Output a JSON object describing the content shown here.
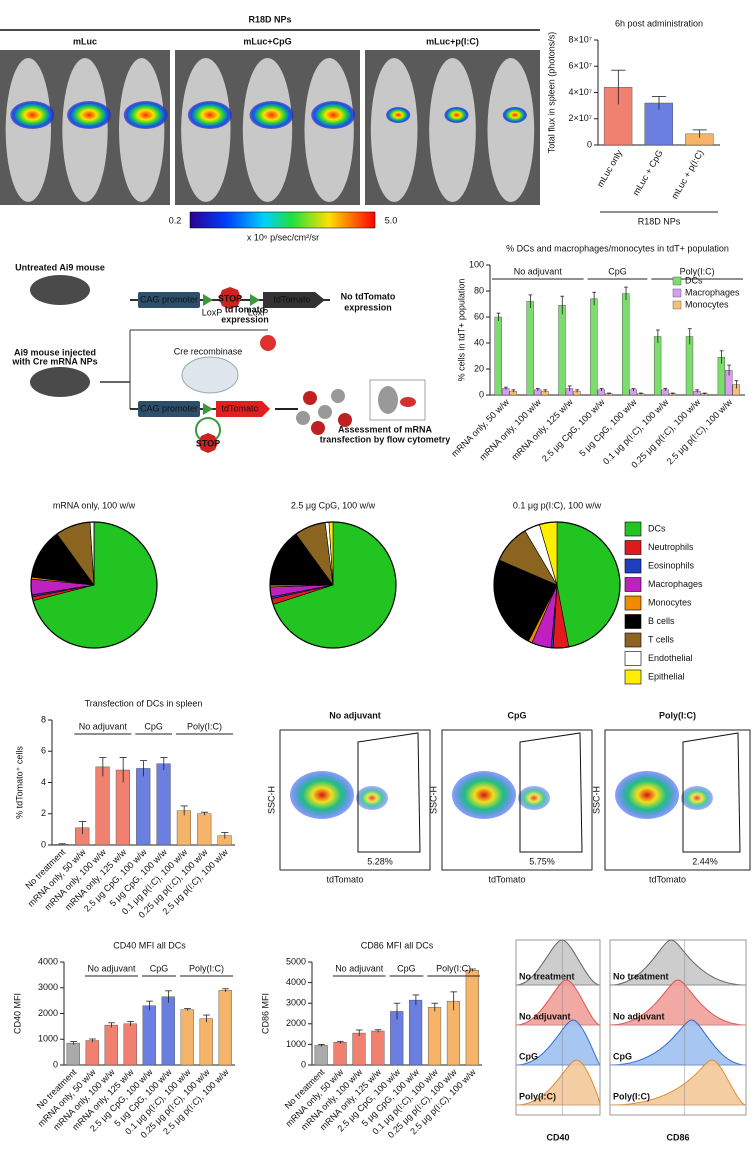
{
  "chart_data": [
    {
      "type": "bar",
      "title": "6h post administration",
      "y_label": "Total flux in spleen (photons/s)",
      "categories": [
        "mLuc only",
        "mLuc + CpG",
        "mLuc + p(I:C)"
      ],
      "values": [
        44000000,
        32000000,
        8500000
      ],
      "errors": [
        13000000,
        5000000,
        3000000
      ],
      "colors": [
        "#f08070",
        "#6a7fe0",
        "#f5b46a"
      ],
      "ylim": [
        0,
        80000000
      ],
      "yticks": [
        0,
        {
          "value": 20000000,
          "label": "2×10⁷"
        },
        {
          "value": 40000000,
          "label": "4×10⁷"
        },
        {
          "value": 60000000,
          "label": "6×10⁷"
        },
        {
          "value": 80000000,
          "label": "8×10⁷"
        }
      ],
      "group_labels": [
        "R18D NPs"
      ]
    },
    {
      "type": "bar",
      "title": "% DCs and macrophages/monocytes in tdT+ population",
      "y_label": "% cells in tdT+ population",
      "categories": [
        "mRNA only, 50 w/w",
        "mRNA only, 100 w/w",
        "mRNA only, 125 w/w",
        "2.5 μg CpG, 100 w/w",
        "5 μg CpG, 100 w/w",
        "0.1 μg p(I:C), 100 w/w",
        "0.25 μg p(I:C), 100 w/w",
        "2.5 μg p(I:C), 100 w/w"
      ],
      "series": [
        {
          "name": "DCs",
          "color": "#7ddc6e",
          "values": [
            60,
            72,
            69,
            74,
            78,
            45,
            45,
            29
          ],
          "errors": [
            3,
            5,
            7,
            5,
            5,
            5,
            6,
            5
          ]
        },
        {
          "name": "Macrophages",
          "color": "#d89cf0",
          "values": [
            5,
            4,
            5,
            4,
            4,
            4,
            3,
            19
          ],
          "errors": [
            1,
            1,
            2,
            1,
            1,
            1,
            1,
            4
          ]
        },
        {
          "name": "Monocytes",
          "color": "#f7c07a",
          "values": [
            3,
            3,
            3,
            1,
            1,
            1,
            1,
            8
          ],
          "errors": [
            1,
            1,
            1,
            0.5,
            0.5,
            0.5,
            0.5,
            3
          ]
        }
      ],
      "ylim": [
        0,
        100
      ],
      "yticks": [
        0,
        20,
        40,
        60,
        80,
        100
      ],
      "group_labels": [
        "No adjuvant",
        "CpG",
        "Poly(I:C)"
      ],
      "legend": "top-right"
    },
    {
      "type": "pie",
      "title": "mRNA only, 100 w/w",
      "categories": [
        "DCs",
        "Neutrophils",
        "Eosinophils",
        "Macrophages",
        "Monocytes",
        "B cells",
        "T cells",
        "Endothelial",
        "Epithelial"
      ],
      "values": [
        71,
        1,
        0.5,
        4,
        0.5,
        13,
        9,
        1,
        0
      ],
      "colors": [
        "#22c422",
        "#e31a1c",
        "#1f3fbf",
        "#c020c0",
        "#f08a00",
        "#000000",
        "#8b6420",
        "#ffffff",
        "#ffee00"
      ]
    },
    {
      "type": "pie",
      "title": "2.5 μg CpG, 100 w/w",
      "categories": [
        "DCs",
        "Neutrophils",
        "Eosinophils",
        "Macrophages",
        "Monocytes",
        "B cells",
        "T cells",
        "Endothelial",
        "Epithelial"
      ],
      "values": [
        70,
        1.5,
        0.5,
        2.5,
        0.5,
        15,
        8,
        1,
        1
      ],
      "colors": [
        "#22c422",
        "#e31a1c",
        "#1f3fbf",
        "#c020c0",
        "#f08a00",
        "#000000",
        "#8b6420",
        "#ffffff",
        "#ffee00"
      ]
    },
    {
      "type": "pie",
      "title": "0.1 μg p(I:C), 100 w/w",
      "categories": [
        "DCs",
        "Neutrophils",
        "Eosinophils",
        "Macrophages",
        "Monocytes",
        "B cells",
        "T cells",
        "Endothelial",
        "Epithelial"
      ],
      "values": [
        47,
        4,
        0.5,
        5,
        1,
        24,
        10,
        4,
        4.5
      ],
      "colors": [
        "#22c422",
        "#e31a1c",
        "#1f3fbf",
        "#c020c0",
        "#f08a00",
        "#000000",
        "#8b6420",
        "#ffffff",
        "#ffee00"
      ]
    },
    {
      "type": "bar",
      "title": "Transfection of DCs in spleen",
      "y_label": "% tdTomato⁺ cells",
      "categories": [
        "No treatment",
        "mRNA only, 50 w/w",
        "mRNA only, 100 w/w",
        "mRNA only, 125 w/w",
        "2.5 μg CpG, 100 w/w",
        "5 μg CpG, 100 w/w",
        "0.1 μg p(I:C), 100 w/w",
        "0.25 μg p(I:C), 100 w/w",
        "2.5 μg p(I:C), 100 w/w"
      ],
      "values": [
        0.05,
        1.1,
        5.0,
        4.8,
        4.9,
        5.2,
        2.2,
        2.0,
        0.6
      ],
      "errors": [
        0.03,
        0.4,
        0.6,
        0.8,
        0.5,
        0.4,
        0.3,
        0.1,
        0.2
      ],
      "colors": [
        "#aaaaaa",
        "#f08070",
        "#f08070",
        "#f08070",
        "#6a7fe0",
        "#6a7fe0",
        "#f5b46a",
        "#f5b46a",
        "#f5b46a"
      ],
      "ylim": [
        0,
        8
      ],
      "yticks": [
        0,
        2,
        4,
        6,
        8
      ],
      "group_labels": [
        "No adjuvant",
        "CpG",
        "Poly(I:C)"
      ]
    },
    {
      "type": "bar",
      "title": "CD40 MFI all DCs",
      "y_label": "CD40 MFI",
      "categories": [
        "No treatment",
        "mRNA only, 50 w/w",
        "mRNA only, 100 w/w",
        "mRNA only, 125 w/w",
        "2.5 μg CpG, 100 w/w",
        "5 μg CpG, 100 w/w",
        "0.1 μg p(I:C), 100 w/w",
        "0.25 μg p(I:C), 100 w/w",
        "2.5 μg p(I:C), 100 w/w"
      ],
      "values": [
        850,
        950,
        1550,
        1600,
        2300,
        2650,
        2150,
        1800,
        2900
      ],
      "errors": [
        60,
        60,
        90,
        90,
        180,
        230,
        40,
        140,
        60
      ],
      "colors": [
        "#aaaaaa",
        "#f08070",
        "#f08070",
        "#f08070",
        "#6a7fe0",
        "#6a7fe0",
        "#f5b46a",
        "#f5b46a",
        "#f5b46a"
      ],
      "ylim": [
        0,
        4000
      ],
      "yticks": [
        0,
        1000,
        2000,
        3000,
        4000
      ],
      "group_labels": [
        "No adjuvant",
        "CpG",
        "Poly(I:C)"
      ]
    },
    {
      "type": "bar",
      "title": "CD86 MFI all DCs",
      "y_label": "CD86 MFI",
      "categories": [
        "No treatment",
        "mRNA only, 50 w/w",
        "mRNA only, 100 w/w",
        "mRNA only, 125 w/w",
        "2.5 μg CpG, 100 w/w",
        "5 μg CpG, 100 w/w",
        "0.1 μg p(I:C), 100 w/w",
        "0.25 μg p(I:C), 100 w/w",
        "2.5 μg p(I:C), 100 w/w"
      ],
      "values": [
        950,
        1100,
        1550,
        1650,
        2600,
        3150,
        2800,
        3100,
        4600
      ],
      "errors": [
        50,
        50,
        150,
        60,
        400,
        250,
        200,
        450,
        60
      ],
      "colors": [
        "#aaaaaa",
        "#f08070",
        "#f08070",
        "#f08070",
        "#6a7fe0",
        "#6a7fe0",
        "#f5b46a",
        "#f5b46a",
        "#f5b46a"
      ],
      "ylim": [
        0,
        5000
      ],
      "yticks": [
        0,
        1000,
        2000,
        3000,
        4000,
        5000
      ],
      "group_labels": [
        "No adjuvant",
        "CpG",
        "Poly(I:C)"
      ]
    }
  ],
  "imaging": {
    "title": "R18D NPs",
    "panels": [
      "mLuc",
      "mLuc+CpG",
      "mLuc+p(I:C)"
    ],
    "scale_min": "0.2",
    "scale_max": "5.0",
    "scale_unit": "x 10⁶ p/sec/cm²/sr"
  },
  "diagram": {
    "mouse1": "Untreated Ai9 mouse",
    "mouse2a": "Ai9 mouse injected",
    "mouse2b": "with Cre mRNA NPs",
    "promoter": "CAG promoter",
    "stop": "STOP",
    "loxp": "LoxP",
    "reporter": "tdTomato",
    "result1a": "No tdTomato",
    "result1b": "expression",
    "cre": "Cre recombinase",
    "result2a": "tdTomato",
    "result2b": "expression",
    "assess1": "Assessment of mRNA",
    "assess2": "transfection  by flow cytometry"
  },
  "flow": {
    "y_label": "SSC-H",
    "x_label": "tdTomato",
    "panels": [
      {
        "title": "No adjuvant",
        "gate": "5.28%"
      },
      {
        "title": "CpG",
        "gate": "5.75%"
      },
      {
        "title": "Poly(I:C)",
        "gate": "2.44%"
      }
    ]
  },
  "histograms": {
    "rows": [
      "No treatment",
      "No adjuvant",
      "CpG",
      "Poly(I:C)"
    ],
    "markers": [
      "CD40",
      "CD86"
    ]
  }
}
